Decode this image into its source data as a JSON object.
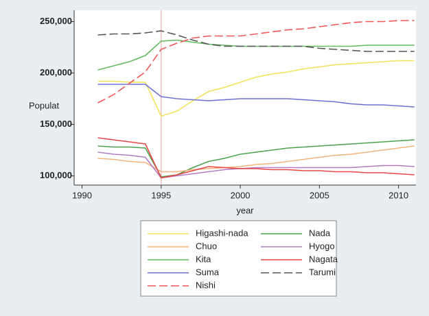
{
  "chart_data": {
    "type": "line",
    "x_label": "year",
    "y_label": "Populat",
    "x": [
      1991,
      1992,
      1993,
      1994,
      1995,
      1996,
      1997,
      1998,
      1999,
      2000,
      2001,
      2002,
      2003,
      2004,
      2005,
      2006,
      2007,
      2008,
      2009,
      2010,
      2011
    ],
    "xlim": [
      1989.5,
      2011.1
    ],
    "xticks": [
      1990,
      1995,
      2000,
      2005,
      2010
    ],
    "ylim": [
      91000,
      261000
    ],
    "yticks": [
      {
        "value": 100000,
        "label": "100,000"
      },
      {
        "value": 150000,
        "label": "150,000"
      },
      {
        "value": 200000,
        "label": "200,000"
      },
      {
        "value": 250000,
        "label": "250,000"
      }
    ],
    "vline": 1995,
    "vline_color": "#e8a0a0",
    "series": [
      {
        "name": "Higashi-nada",
        "color": "#f2e35a",
        "style": "solid",
        "values": [
          192000,
          192000,
          191000,
          191000,
          158000,
          163000,
          173000,
          182000,
          186000,
          191000,
          196000,
          199000,
          201000,
          204000,
          206000,
          208000,
          209000,
          210000,
          211000,
          212000,
          212000
        ]
      },
      {
        "name": "Nada",
        "color": "#4da24d",
        "style": "solid",
        "values": [
          129000,
          128000,
          128000,
          127000,
          99000,
          101000,
          108000,
          114000,
          117000,
          121000,
          123000,
          125000,
          127000,
          128000,
          129000,
          130000,
          131000,
          132000,
          133000,
          134000,
          135000
        ]
      },
      {
        "name": "Chuo",
        "color": "#f3b47c",
        "style": "solid",
        "values": [
          117000,
          116000,
          114000,
          113000,
          104000,
          104000,
          106000,
          107000,
          108000,
          109000,
          111000,
          112000,
          114000,
          116000,
          118000,
          120000,
          121000,
          123000,
          125000,
          127000,
          129000
        ]
      },
      {
        "name": "Hyogo",
        "color": "#b27cc4",
        "style": "solid",
        "values": [
          123000,
          121000,
          120000,
          118000,
          98000,
          100000,
          102000,
          104000,
          106000,
          107000,
          108000,
          108000,
          108000,
          108000,
          108000,
          108000,
          108000,
          109000,
          110000,
          110000,
          109000
        ]
      },
      {
        "name": "Kita",
        "color": "#62bb5e",
        "style": "solid",
        "values": [
          203000,
          207000,
          211000,
          217000,
          231000,
          232000,
          230000,
          228000,
          227000,
          226000,
          226000,
          226000,
          226000,
          226000,
          226000,
          226000,
          226000,
          227000,
          227000,
          227000,
          227000
        ]
      },
      {
        "name": "Nagata",
        "color": "#e84646",
        "style": "solid",
        "values": [
          137000,
          135000,
          133000,
          131000,
          98000,
          101000,
          105000,
          109000,
          108000,
          107000,
          107000,
          106000,
          106000,
          105000,
          105000,
          104000,
          104000,
          103000,
          103000,
          102000,
          101000
        ]
      },
      {
        "name": "Suma",
        "color": "#6e70d8",
        "style": "solid",
        "values": [
          189000,
          189000,
          189000,
          189000,
          177000,
          175000,
          174000,
          173000,
          174000,
          175000,
          175000,
          175000,
          175000,
          174000,
          173000,
          172000,
          170000,
          169000,
          169000,
          168000,
          167000
        ]
      },
      {
        "name": "Tarumi",
        "color": "#555555",
        "style": "dashed",
        "values": [
          237000,
          238000,
          238000,
          239000,
          241000,
          237000,
          232000,
          228000,
          226000,
          226000,
          226000,
          226000,
          226000,
          226000,
          224000,
          223000,
          222000,
          221000,
          221000,
          221000,
          221000
        ]
      },
      {
        "name": "Nishi",
        "color": "#f05656",
        "style": "dashed",
        "values": [
          171000,
          179000,
          190000,
          201000,
          223000,
          229000,
          234000,
          236000,
          236000,
          236000,
          238000,
          240000,
          242000,
          243000,
          245000,
          247000,
          249000,
          250000,
          250000,
          251000,
          251000
        ]
      }
    ]
  }
}
